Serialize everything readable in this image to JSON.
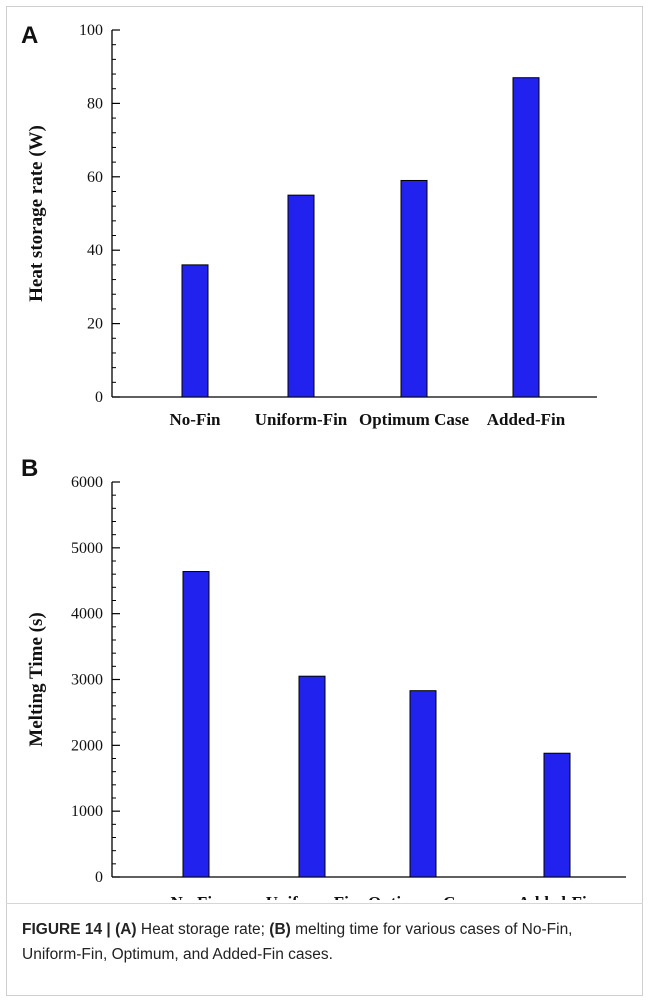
{
  "figure": {
    "caption_label": "FIGURE 14 | ",
    "caption_a_tag": "(A)",
    "caption_a_text": " Heat storage rate; ",
    "caption_b_tag": "(B)",
    "caption_b_text": " melting time for various cases of No-Fin, Uniform-Fin, Optimum, and Added-Fin cases."
  },
  "colors": {
    "bar_fill": "#2222ee",
    "bar_stroke": "#000000",
    "axis": "#000000"
  },
  "chart_data": [
    {
      "panel": "A",
      "type": "bar",
      "title": "",
      "xlabel": "",
      "ylabel": "Heat storage rate (W)",
      "ylim": [
        0,
        100
      ],
      "yticks": [
        0,
        20,
        40,
        60,
        80,
        100
      ],
      "categories": [
        "No-Fin",
        "Uniform-Fin",
        "Optimum Case",
        "Added-Fin"
      ],
      "values": [
        36,
        55,
        59,
        87
      ],
      "grid": false,
      "legend": "none"
    },
    {
      "panel": "B",
      "type": "bar",
      "title": "",
      "xlabel": "",
      "ylabel": "Melting Time (s)",
      "ylim": [
        0,
        6000
      ],
      "yticks": [
        0,
        1000,
        2000,
        3000,
        4000,
        5000,
        6000
      ],
      "categories": [
        "No-Fin",
        "Uniform-Fin",
        "Optimum Case",
        "Added-Fin"
      ],
      "values": [
        4640,
        3050,
        2830,
        1880
      ],
      "grid": false,
      "legend": "none"
    }
  ]
}
